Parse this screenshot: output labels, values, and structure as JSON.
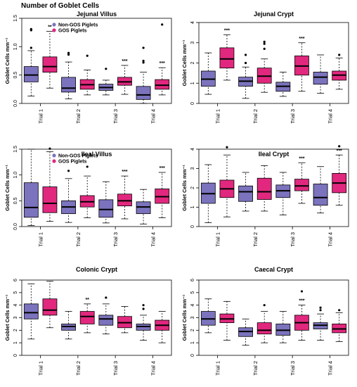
{
  "figure": {
    "title": "Number of Goblet Cells"
  },
  "colors": {
    "non_gos": "#7b73bd",
    "gos": "#e1287e"
  },
  "chart_data": [
    {
      "type": "boxplot",
      "title": "Jejunal Villus",
      "ylabel": "Goblet Cells mm⁻¹",
      "ylim": [
        0,
        1.5
      ],
      "yticks": [
        "0.0",
        "0.5",
        "1.0",
        "1.5"
      ],
      "categories": [
        "Trial 1",
        "Trial 2",
        "Trial 3",
        "Trial 4"
      ],
      "legend": {
        "placement": "top-left",
        "entries": [
          "Non-GOS Piglets",
          "GOS Piglets"
        ]
      },
      "groups": [
        {
          "nongos": {
            "lo": 0.13,
            "q1": 0.38,
            "med": 0.5,
            "q3": 0.65,
            "hi": 0.93,
            "out": [
              1.31,
              1.29,
              0.98
            ]
          },
          "gos": {
            "lo": 0.27,
            "q1": 0.55,
            "med": 0.65,
            "q3": 0.82,
            "hi": 1.27,
            "out": []
          },
          "sig": "**"
        },
        {
          "nongos": {
            "lo": 0.08,
            "q1": 0.2,
            "med": 0.27,
            "q3": 0.46,
            "hi": 0.73,
            "out": [
              0.86,
              0.89
            ]
          },
          "gos": {
            "lo": 0.15,
            "q1": 0.25,
            "med": 0.33,
            "q3": 0.42,
            "hi": 0.59,
            "out": [
              0.84
            ]
          },
          "sig": ""
        },
        {
          "nongos": {
            "lo": 0.15,
            "q1": 0.23,
            "med": 0.28,
            "q3": 0.34,
            "hi": 0.41,
            "out": [
              0.61
            ]
          },
          "gos": {
            "lo": 0.16,
            "q1": 0.32,
            "med": 0.38,
            "q3": 0.46,
            "hi": 0.67,
            "out": []
          },
          "sig": "***"
        },
        {
          "nongos": {
            "lo": 0.0,
            "q1": 0.07,
            "med": 0.15,
            "q3": 0.3,
            "hi": 0.55,
            "out": [
              0.72,
              0.98,
              0.75
            ]
          },
          "gos": {
            "lo": 0.15,
            "q1": 0.25,
            "med": 0.32,
            "q3": 0.42,
            "hi": 0.63,
            "out": [
              1.39
            ]
          },
          "sig": "***"
        }
      ]
    },
    {
      "type": "boxplot",
      "title": "Jejunal Crypt",
      "ylabel": "Goblet Cells mm⁻¹",
      "ylim": [
        0,
        4
      ],
      "yticks": [
        "0",
        "1",
        "2",
        "3",
        "4"
      ],
      "categories": [
        "Trial 1",
        "Trial 2",
        "Trial 3",
        "Trial 4"
      ],
      "groups": [
        {
          "nongos": {
            "lo": 0.45,
            "q1": 0.85,
            "med": 1.2,
            "q3": 1.6,
            "hi": 2.5,
            "out": []
          },
          "gos": {
            "lo": 1.15,
            "q1": 1.75,
            "med": 2.2,
            "q3": 2.75,
            "hi": 3.4,
            "out": []
          },
          "sig": "***"
        },
        {
          "nongos": {
            "lo": 0.25,
            "q1": 0.85,
            "med": 1.1,
            "q3": 1.3,
            "hi": 1.8,
            "out": [
              2.4,
              2.0
            ]
          },
          "gos": {
            "lo": 0.55,
            "q1": 1.0,
            "med": 1.35,
            "q3": 1.75,
            "hi": 2.2,
            "out": [
              3.05,
              2.95,
              2.7
            ]
          },
          "sig": ""
        },
        {
          "nongos": {
            "lo": 0.35,
            "q1": 0.6,
            "med": 0.85,
            "q3": 1.05,
            "hi": 1.55,
            "out": []
          },
          "gos": {
            "lo": 0.6,
            "q1": 1.4,
            "med": 1.85,
            "q3": 2.35,
            "hi": 3.0,
            "out": []
          },
          "sig": "***"
        },
        {
          "nongos": {
            "lo": 0.5,
            "q1": 0.95,
            "med": 1.3,
            "q3": 1.55,
            "hi": 2.4,
            "out": []
          },
          "gos": {
            "lo": 0.7,
            "q1": 1.15,
            "med": 1.4,
            "q3": 1.6,
            "hi": 2.25,
            "out": [
              2.4
            ]
          },
          "sig": ""
        }
      ]
    },
    {
      "type": "boxplot",
      "title": "Ileal Villus",
      "ylabel": "Goblet Cells mm⁻¹",
      "ylim": [
        0,
        1.5
      ],
      "yticks": [
        "0.0",
        "0.5",
        "1.0",
        "1.5"
      ],
      "categories": [
        "Trial 1",
        "Trial 2",
        "Trial 3",
        "Trial 4"
      ],
      "legend": {
        "placement": "top-left",
        "entries": [
          "Non-GOS Piglets",
          "GOS Piglets"
        ]
      },
      "groups": [
        {
          "nongos": {
            "lo": 0.02,
            "q1": 0.18,
            "med": 0.37,
            "q3": 0.85,
            "hi": 1.5,
            "out": []
          },
          "gos": {
            "lo": 0.1,
            "q1": 0.27,
            "med": 0.45,
            "q3": 0.77,
            "hi": 1.45,
            "out": [
              1.51
            ]
          },
          "sig": ""
        },
        {
          "nongos": {
            "lo": 0.08,
            "q1": 0.25,
            "med": 0.38,
            "q3": 0.5,
            "hi": 0.93,
            "out": [
              1.08
            ]
          },
          "gos": {
            "lo": 0.17,
            "q1": 0.38,
            "med": 0.48,
            "q3": 0.6,
            "hi": 0.98,
            "out": [
              1.16
            ]
          },
          "sig": ""
        },
        {
          "nongos": {
            "lo": 0.07,
            "q1": 0.18,
            "med": 0.33,
            "q3": 0.52,
            "hi": 0.87,
            "out": []
          },
          "gos": {
            "lo": 0.15,
            "q1": 0.4,
            "med": 0.5,
            "q3": 0.63,
            "hi": 0.98,
            "out": []
          },
          "sig": "***"
        },
        {
          "nongos": {
            "lo": 0.05,
            "q1": 0.25,
            "med": 0.38,
            "q3": 0.48,
            "hi": 0.72,
            "out": []
          },
          "gos": {
            "lo": 0.17,
            "q1": 0.45,
            "med": 0.58,
            "q3": 0.73,
            "hi": 1.05,
            "out": []
          },
          "sig": "***"
        }
      ]
    },
    {
      "type": "boxplot",
      "title": "Ileal Crypt",
      "ylabel": "Goblet Cells mm⁻¹",
      "ylim": [
        0,
        4
      ],
      "yticks": [
        "0",
        "1",
        "2",
        "3",
        "4"
      ],
      "categories": [
        "Trial 1",
        "Trial 2",
        "Trial 3",
        "Trial 4"
      ],
      "groups": [
        {
          "nongos": {
            "lo": 0.2,
            "q1": 1.2,
            "med": 1.7,
            "q3": 2.25,
            "hi": 3.2,
            "out": []
          },
          "gos": {
            "lo": 0.5,
            "q1": 1.5,
            "med": 1.95,
            "q3": 2.4,
            "hi": 3.7,
            "out": [
              4.1
            ]
          },
          "sig": ""
        },
        {
          "nongos": {
            "lo": 0.8,
            "q1": 1.3,
            "med": 1.8,
            "q3": 2.1,
            "hi": 2.8,
            "out": []
          },
          "gos": {
            "lo": 0.8,
            "q1": 1.4,
            "med": 1.8,
            "q3": 2.5,
            "hi": 3.15,
            "out": []
          },
          "sig": ""
        },
        {
          "nongos": {
            "lo": 0.6,
            "q1": 1.5,
            "med": 1.85,
            "q3": 2.15,
            "hi": 2.8,
            "out": []
          },
          "gos": {
            "lo": 1.2,
            "q1": 1.85,
            "med": 2.1,
            "q3": 2.45,
            "hi": 3.3,
            "out": []
          },
          "sig": "***"
        },
        {
          "nongos": {
            "lo": 0.7,
            "q1": 1.1,
            "med": 1.5,
            "q3": 2.2,
            "hi": 3.1,
            "out": []
          },
          "gos": {
            "lo": 1.1,
            "q1": 1.75,
            "med": 2.25,
            "q3": 2.75,
            "hi": 3.7,
            "out": [
              4.15
            ]
          },
          "sig": "***"
        }
      ]
    },
    {
      "type": "boxplot",
      "title": "Colonic Crypt",
      "ylabel": "Goblet Cells mm⁻¹",
      "ylim": [
        0,
        6
      ],
      "yticks": [
        "0",
        "1",
        "2",
        "3",
        "4",
        "5",
        "6"
      ],
      "categories": [
        "Trial 1",
        "Trial 2",
        "Trial 3",
        "Trial 4"
      ],
      "groups": [
        {
          "nongos": {
            "lo": 1.3,
            "q1": 2.9,
            "med": 3.4,
            "q3": 4.1,
            "hi": 5.7,
            "out": []
          },
          "gos": {
            "lo": 2.2,
            "q1": 3.2,
            "med": 3.6,
            "q3": 4.5,
            "hi": 5.9,
            "out": []
          },
          "sig": ""
        },
        {
          "nongos": {
            "lo": 1.3,
            "q1": 2.0,
            "med": 2.3,
            "q3": 2.5,
            "hi": 3.5,
            "out": []
          },
          "gos": {
            "lo": 1.8,
            "q1": 2.5,
            "med": 3.1,
            "q3": 3.5,
            "hi": 4.1,
            "out": []
          },
          "sig": "**"
        },
        {
          "nongos": {
            "lo": 1.7,
            "q1": 2.4,
            "med": 2.9,
            "q3": 3.2,
            "hi": 4.1,
            "out": [
              4.6
            ]
          },
          "gos": {
            "lo": 1.8,
            "q1": 2.2,
            "med": 2.6,
            "q3": 3.1,
            "hi": 3.9,
            "out": []
          },
          "sig": ""
        },
        {
          "nongos": {
            "lo": 1.2,
            "q1": 2.0,
            "med": 2.3,
            "q3": 2.5,
            "hi": 3.2,
            "out": [
              4.0,
              3.7
            ]
          },
          "gos": {
            "lo": 1.0,
            "q1": 2.0,
            "med": 2.4,
            "q3": 2.8,
            "hi": 3.5,
            "out": []
          },
          "sig": ""
        }
      ]
    },
    {
      "type": "boxplot",
      "title": "Caecal Crypt",
      "ylabel": "Goblet Cells mm⁻¹",
      "ylim": [
        0,
        6
      ],
      "yticks": [
        "0",
        "1",
        "2",
        "3",
        "4",
        "5",
        "6"
      ],
      "categories": [
        "Trial 1",
        "Trial 2",
        "Trial 3",
        "Trial 4"
      ],
      "groups": [
        {
          "nongos": {
            "lo": 1.8,
            "q1": 2.4,
            "med": 2.9,
            "q3": 3.5,
            "hi": 4.5,
            "out": []
          },
          "gos": {
            "lo": 1.2,
            "q1": 2.6,
            "med": 2.9,
            "q3": 3.3,
            "hi": 4.3,
            "out": []
          },
          "sig": ""
        },
        {
          "nongos": {
            "lo": 0.8,
            "q1": 1.5,
            "med": 1.9,
            "q3": 2.2,
            "hi": 2.9,
            "out": []
          },
          "gos": {
            "lo": 1.0,
            "q1": 1.7,
            "med": 2.0,
            "q3": 2.6,
            "hi": 3.5,
            "out": [
              4.0
            ]
          },
          "sig": ""
        },
        {
          "nongos": {
            "lo": 1.0,
            "q1": 1.6,
            "med": 2.0,
            "q3": 2.5,
            "hi": 3.5,
            "out": []
          },
          "gos": {
            "lo": 1.2,
            "q1": 2.0,
            "med": 2.6,
            "q3": 3.2,
            "hi": 4.0,
            "out": [
              5.1
            ]
          },
          "sig": "***"
        },
        {
          "nongos": {
            "lo": 1.2,
            "q1": 2.1,
            "med": 2.4,
            "q3": 2.6,
            "hi": 3.3,
            "out": [
              3.8,
              3.6
            ]
          },
          "gos": {
            "lo": 1.1,
            "q1": 1.8,
            "med": 2.1,
            "q3": 2.5,
            "hi": 3.4,
            "out": [
              3.6
            ]
          },
          "sig": ""
        }
      ]
    }
  ]
}
